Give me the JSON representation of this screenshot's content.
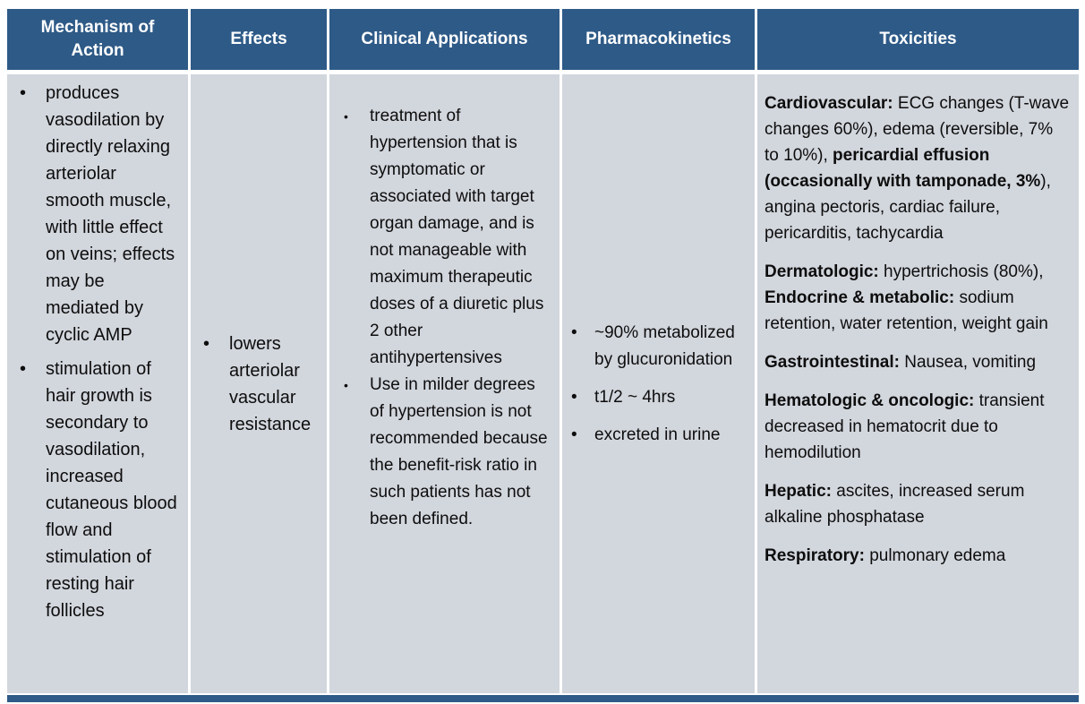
{
  "colors": {
    "header_bg": "#2E5A87",
    "header_text": "#FFFFFF",
    "cell_bg": "#D2D6DD",
    "gutter": "#FFFFFF",
    "text": "#0D0D0D",
    "bottom_bar": "#2E5A87"
  },
  "table": {
    "headers": [
      "Mechanism of Action",
      "Effects",
      "Clinical Applications",
      "Pharmacokinetics",
      "Toxicities"
    ],
    "bullet_glyph": "•",
    "mechanism_bullets": [
      "produces vasodilation by directly relaxing arteriolar smooth muscle, with little effect on veins; effects may be mediated by cyclic AMP",
      "stimulation of hair growth is secondary to vasodilation, increased cutaneous blood flow and stimulation of resting hair follicles"
    ],
    "effects_bullets": [
      "lowers arteriolar vascular resistance"
    ],
    "clinical_bullets": [
      "treatment of hypertension that is symptomatic or associated with target organ damage, and is not manageable with maximum therapeutic doses of a diuretic plus 2 other antihypertensives",
      "Use in milder degrees of hypertension is not recommended because the benefit-risk ratio in such patients has not been defined."
    ],
    "pharmacokinetics_bullets": [
      "~90% metabolized by glucuronidation",
      "t1/2 ~ 4hrs",
      "excreted in urine"
    ],
    "toxicities_paragraphs": [
      [
        {
          "text": "Cardiovascular: ",
          "bold": true
        },
        {
          "text": "ECG changes (T-wave changes 60%), edema (reversible, 7% to 10%), ",
          "bold": false
        },
        {
          "text": "pericardial effusion (occasionally with tamponade, 3%",
          "bold": true
        },
        {
          "text": "), angina pectoris, cardiac failure, pericarditis, tachycardia",
          "bold": false
        }
      ],
      [
        {
          "text": "Dermatologic: ",
          "bold": true
        },
        {
          "text": "hypertrichosis (80%), ",
          "bold": false
        },
        {
          "text": "Endocrine & metabolic: ",
          "bold": true
        },
        {
          "text": "sodium retention, water retention, weight gain",
          "bold": false
        }
      ],
      [
        {
          "text": "Gastrointestinal: ",
          "bold": true
        },
        {
          "text": "Nausea, vomiting",
          "bold": false
        }
      ],
      [
        {
          "text": "Hematologic & oncologic: ",
          "bold": true
        },
        {
          "text": "transient decreased in hematocrit due to hemodilution",
          "bold": false
        }
      ],
      [
        {
          "text": "Hepatic: ",
          "bold": true
        },
        {
          "text": "ascites, increased serum alkaline phosphatase",
          "bold": false
        }
      ],
      [
        {
          "text": "Respiratory: ",
          "bold": true
        },
        {
          "text": "pulmonary edema",
          "bold": false
        }
      ]
    ]
  }
}
